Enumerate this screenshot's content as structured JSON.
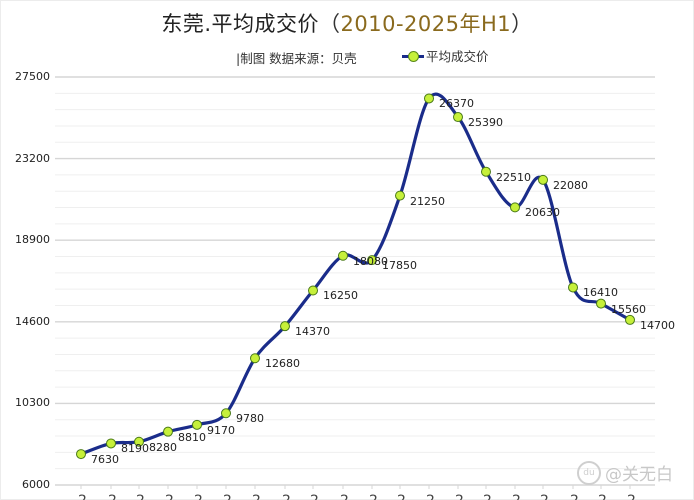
{
  "title": {
    "main": "东莞.平均成交价",
    "open_paren": "（",
    "period": "2010-2025年H1",
    "close_paren": "）"
  },
  "credit": "|制图   数据来源：贝壳",
  "legend": {
    "label": "平均成交价",
    "line_color": "#1a2c8a",
    "marker_color": "#c6f03a"
  },
  "watermark": {
    "icon": "baidu-paw-icon",
    "text": "@关无白"
  },
  "y_ticks": [
    "27500",
    "23200",
    "18900",
    "14600",
    "10300",
    "6000"
  ],
  "data_labels": [
    "7630",
    "8190",
    "8280",
    "8810",
    "9170",
    "9780",
    "12680",
    "14370",
    "16250",
    "18080",
    "17850",
    "21250",
    "26370",
    "25390",
    "22510",
    "20630",
    "22080",
    "16410",
    "15560",
    "14700"
  ],
  "chart_data": {
    "type": "line",
    "title": "东莞.平均成交价（2010-2025年H1）",
    "subtitle": "|制图 数据来源：贝壳",
    "xlabel": "",
    "ylabel": "",
    "x": [
      1,
      2,
      3,
      4,
      5,
      6,
      7,
      8,
      9,
      10,
      11,
      12,
      13,
      14,
      15,
      16,
      17,
      18,
      19,
      20
    ],
    "series": [
      {
        "name": "平均成交价",
        "values": [
          7630,
          8190,
          8280,
          8810,
          9170,
          9780,
          12680,
          14370,
          16250,
          18080,
          17850,
          21250,
          26370,
          25390,
          22510,
          20630,
          22080,
          16410,
          15560,
          14700
        ],
        "color": "#1a2c8a",
        "marker_color": "#c6f03a",
        "smooth": true
      }
    ],
    "ylim": [
      6000,
      27500
    ],
    "y_ticks": [
      6000,
      10300,
      14600,
      18900,
      23200,
      27500
    ],
    "x_tick_labels_note": "x-axis labels cut off at bottom edge of image",
    "grid": true,
    "legend_position": "top"
  }
}
